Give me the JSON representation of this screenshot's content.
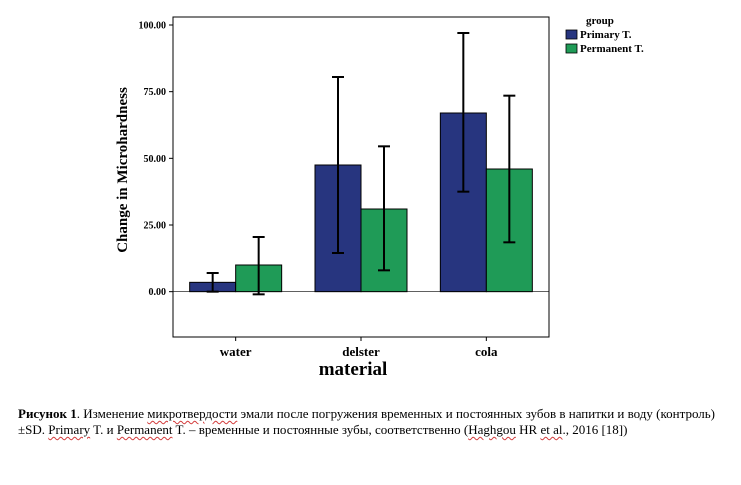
{
  "chart_data": {
    "type": "bar",
    "title": "",
    "xlabel": "material",
    "ylabel": "Change in Microhardness",
    "categories": [
      "water",
      "delster",
      "cola"
    ],
    "series": [
      {
        "name": "Primary T.",
        "color": "#27357f",
        "values": [
          3.5,
          47.5,
          67.0
        ],
        "error_low": [
          0.0,
          14.5,
          37.5
        ],
        "error_high": [
          7.0,
          80.5,
          97.0
        ]
      },
      {
        "name": "Permanent T.",
        "color": "#1f9b57",
        "values": [
          10.0,
          31.0,
          46.0
        ],
        "error_low": [
          -1.0,
          8.0,
          18.5
        ],
        "error_high": [
          20.5,
          54.5,
          73.5
        ]
      }
    ],
    "ylim": [
      -17,
      103
    ],
    "yticks": [
      0,
      25,
      50,
      75,
      100
    ],
    "ytick_labels": [
      "0.00",
      "25.00",
      "50.00",
      "75.00",
      "100.00"
    ],
    "legend": {
      "title": "group",
      "position": "top-right"
    }
  },
  "caption": {
    "lead": "Рисунок 1",
    "seg1": ". Изменение ",
    "w1": "микротвердости",
    "seg2": " эмали после погружения временных и постоянных зубов в напитки и воду (контроль) ±SD. ",
    "w2": "Primary",
    "seg3": " T. и ",
    "w3": "Permanent",
    "seg4": " T. – временные и постоянные зубы, соответственно (",
    "w4": "Haghgou",
    "seg5": " HR ",
    "w5": "et al",
    "seg6": "., 2016 [18])"
  }
}
